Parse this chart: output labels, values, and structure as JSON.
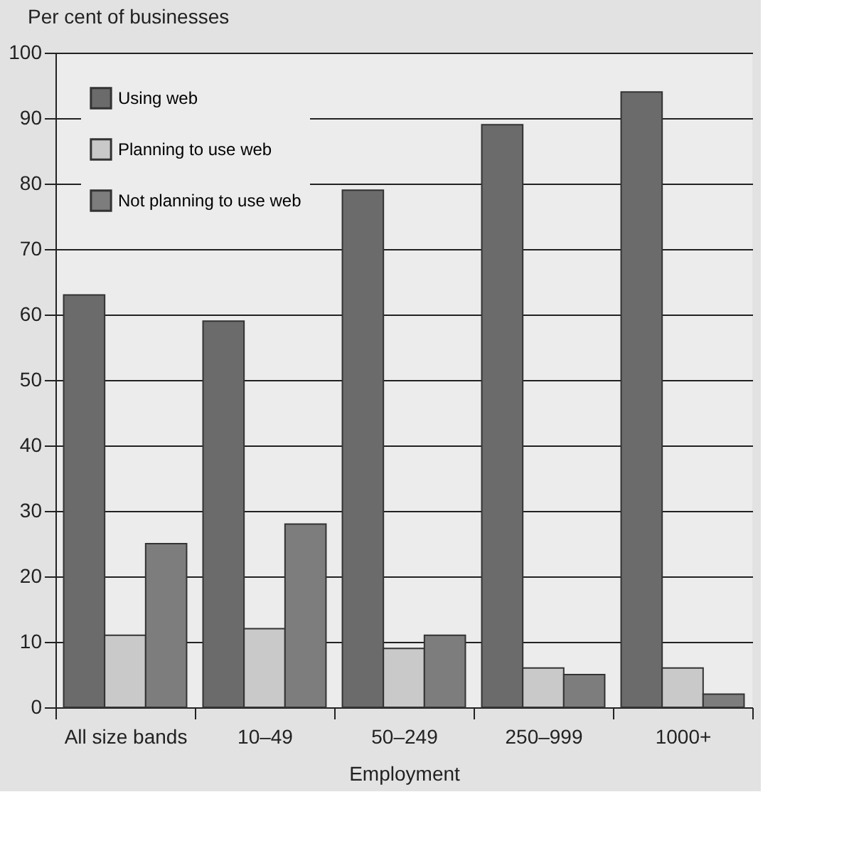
{
  "chart_data": {
    "type": "bar",
    "ylabel": "Per cent of businesses",
    "xlabel": "Employment",
    "categories": [
      "All size bands",
      "10–49",
      "50–249",
      "250–999",
      "1000+"
    ],
    "series": [
      {
        "name": "Using web",
        "color": "#6b6b6b",
        "values": [
          63,
          59,
          79,
          89,
          94
        ]
      },
      {
        "name": "Planning to use web",
        "color": "#c9c9c9",
        "values": [
          11,
          12,
          9,
          6,
          6
        ]
      },
      {
        "name": "Not planning to use web",
        "color": "#7d7d7d",
        "values": [
          25,
          28,
          11,
          5,
          2
        ]
      }
    ],
    "ylim": [
      0,
      100
    ],
    "yticks": [
      0,
      10,
      20,
      30,
      40,
      50,
      60,
      70,
      80,
      90,
      100
    ],
    "grid": "y",
    "legend": "top left"
  }
}
